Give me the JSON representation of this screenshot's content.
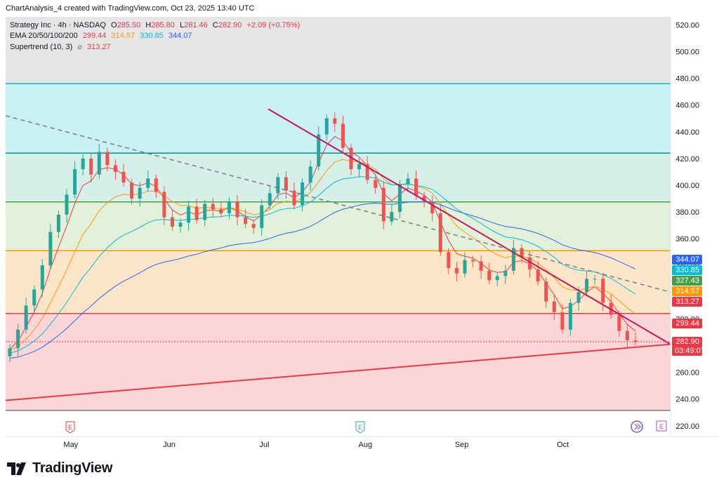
{
  "header": {
    "text": "ChartAnalysis_4 created with TradingView.com, Oct 23, 2025 13:40 UTC"
  },
  "legend": {
    "line1": {
      "title": "Strategy Inc · 4h · NASDAQ",
      "o_label": "O",
      "o_value": "285.50",
      "h_label": "H",
      "h_value": "285.80",
      "l_label": "L",
      "l_value": "281.46",
      "c_label": "C",
      "c_value": "282.90",
      "change": "+2.09 (+0.75%)"
    },
    "line2": {
      "title": "EMA 20/50/100/200",
      "v1": "299.44",
      "v2": "314.57",
      "v3": "330.85",
      "v4": "344.07"
    },
    "line3": {
      "title": "Supertrend (10, 3)",
      "glyph": "⌀",
      "v1": "313.27"
    }
  },
  "colors": {
    "up": "#26a69a",
    "down": "#ef5350",
    "ema20": "#f23645",
    "ema50": "#ff9800",
    "ema100": "#00bcd4",
    "ema200": "#2962ff",
    "triangle": "#c2185b",
    "support": "#f23645",
    "trend_dash": "#787b86"
  },
  "brand": {
    "name": "TradingView"
  },
  "events": {
    "earnings_label": "E"
  },
  "price_badges": [
    {
      "value": "344.07",
      "color": "#2962ff"
    },
    {
      "value": "330.85",
      "color": "#00bcd4"
    },
    {
      "value": "327.43",
      "color": "#43a047"
    },
    {
      "value": "314.57",
      "color": "#ff9800"
    },
    {
      "value": "313.27",
      "color": "#f23645"
    },
    {
      "value": "299.44",
      "color": "#f23645"
    },
    {
      "value": "282.90",
      "color": "#f23645"
    },
    {
      "value": "03:49:07",
      "color": "#f23645"
    }
  ],
  "chart_data": {
    "type": "candlestick",
    "symbol": "Strategy Inc",
    "timeframe": "4h",
    "exchange": "NASDAQ",
    "x_ticks": [
      "May",
      "Jun",
      "Jul",
      "Aug",
      "Sep",
      "Oct"
    ],
    "y_ticks": [
      "220.00",
      "240.00",
      "260.00",
      "280.00",
      "300.00",
      "320.00",
      "340.00",
      "360.00",
      "380.00",
      "400.00",
      "420.00",
      "440.00",
      "460.00",
      "480.00",
      "500.00",
      "520.00"
    ],
    "ylim": [
      212,
      526
    ],
    "horizontal_levels": [
      {
        "value": 476,
        "color": "#00bcd4"
      },
      {
        "value": 424,
        "color": "#009688"
      },
      {
        "value": 387.5,
        "color": "#43a047"
      },
      {
        "value": 351,
        "color": "#ff9800"
      },
      {
        "value": 304,
        "color": "#f23645"
      },
      {
        "value": 231.5,
        "color": "#787b86"
      }
    ],
    "zones": [
      {
        "from": 424,
        "to": 476,
        "color": "#c9f0f4"
      },
      {
        "from": 387.5,
        "to": 424,
        "color": "#d6efe8"
      },
      {
        "from": 351,
        "to": 387.5,
        "color": "#e2f2da"
      },
      {
        "from": 304,
        "to": 351,
        "color": "#fde6c8"
      },
      {
        "from": 231.5,
        "to": 304,
        "color": "#fcd6d6"
      },
      {
        "from": 476,
        "to": 526,
        "color": "#e6e6e6"
      },
      {
        "from": 212,
        "to": 231.5,
        "color": "#ffffff"
      }
    ],
    "closes": [
      278,
      292,
      310,
      322,
      340,
      365,
      378,
      393,
      412,
      420,
      408,
      425,
      415,
      410,
      402,
      390,
      398,
      405,
      395,
      376,
      369,
      372,
      384,
      374,
      386,
      382,
      379,
      388,
      376,
      371,
      368,
      385,
      394,
      406,
      396,
      385,
      402,
      414,
      438,
      450,
      446,
      428,
      412,
      416,
      404,
      398,
      373,
      380,
      401,
      405,
      392,
      388,
      379,
      350,
      338,
      334,
      344,
      343,
      336,
      329,
      332,
      336,
      353,
      346,
      337,
      328,
      313,
      305,
      292,
      312,
      320,
      330,
      330,
      312,
      303,
      291,
      284,
      282.9
    ],
    "lines": [
      {
        "name": "triangle-upper",
        "points": [
          [
            0.395,
            457
          ],
          [
            1,
            281
          ]
        ]
      },
      {
        "name": "triangle-lower",
        "points": [
          [
            0,
            239
          ],
          [
            1,
            281
          ]
        ]
      },
      {
        "name": "trend-dashed",
        "points": [
          [
            0,
            452
          ],
          [
            1,
            320
          ]
        ]
      }
    ]
  }
}
